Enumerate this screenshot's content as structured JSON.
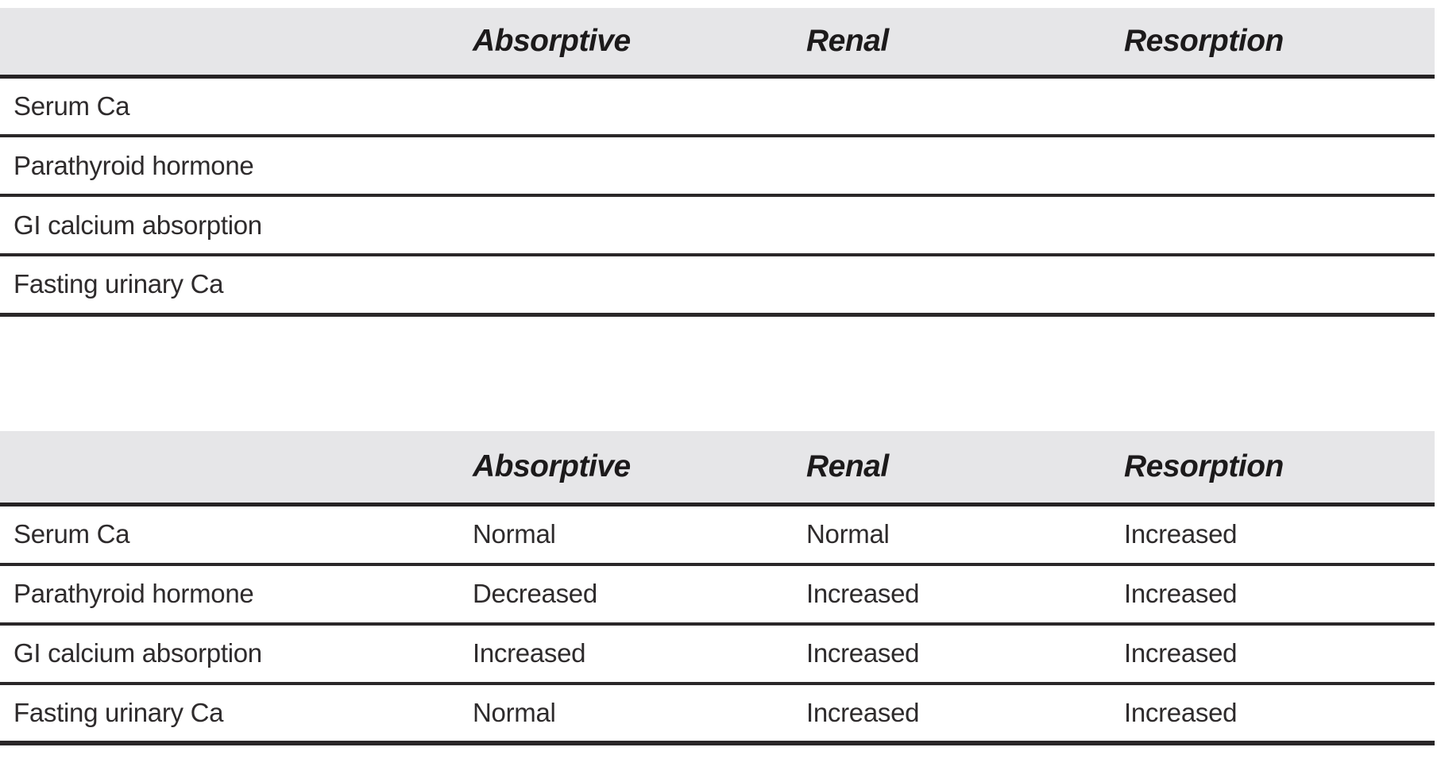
{
  "style": {
    "header_bg": "#e6e6e8",
    "border_color": "#262324",
    "text_color": "#2e2b2c"
  },
  "tables": [
    {
      "id": "blank-table",
      "description": "fill-in table (empty cells)",
      "columns": [
        "",
        "Absorptive",
        "Renal",
        "Resorption"
      ],
      "rows": [
        {
          "label": "Serum Ca",
          "values": [
            "",
            "",
            ""
          ]
        },
        {
          "label": "Parathyroid hormone",
          "values": [
            "",
            "",
            ""
          ]
        },
        {
          "label": "GI calcium absorption",
          "values": [
            "",
            "",
            ""
          ]
        },
        {
          "label": "Fasting urinary Ca",
          "values": [
            "",
            "",
            ""
          ]
        }
      ]
    },
    {
      "id": "answer-table",
      "description": "answered table",
      "columns": [
        "",
        "Absorptive",
        "Renal",
        "Resorption"
      ],
      "rows": [
        {
          "label": "Serum Ca",
          "values": [
            "Normal",
            "Normal",
            "Increased"
          ]
        },
        {
          "label": "Parathyroid hormone",
          "values": [
            "Decreased",
            "Increased",
            "Increased"
          ]
        },
        {
          "label": "GI calcium absorption",
          "values": [
            "Increased",
            "Increased",
            "Increased"
          ]
        },
        {
          "label": "Fasting urinary Ca",
          "values": [
            "Normal",
            "Increased",
            "Increased"
          ]
        }
      ]
    }
  ]
}
